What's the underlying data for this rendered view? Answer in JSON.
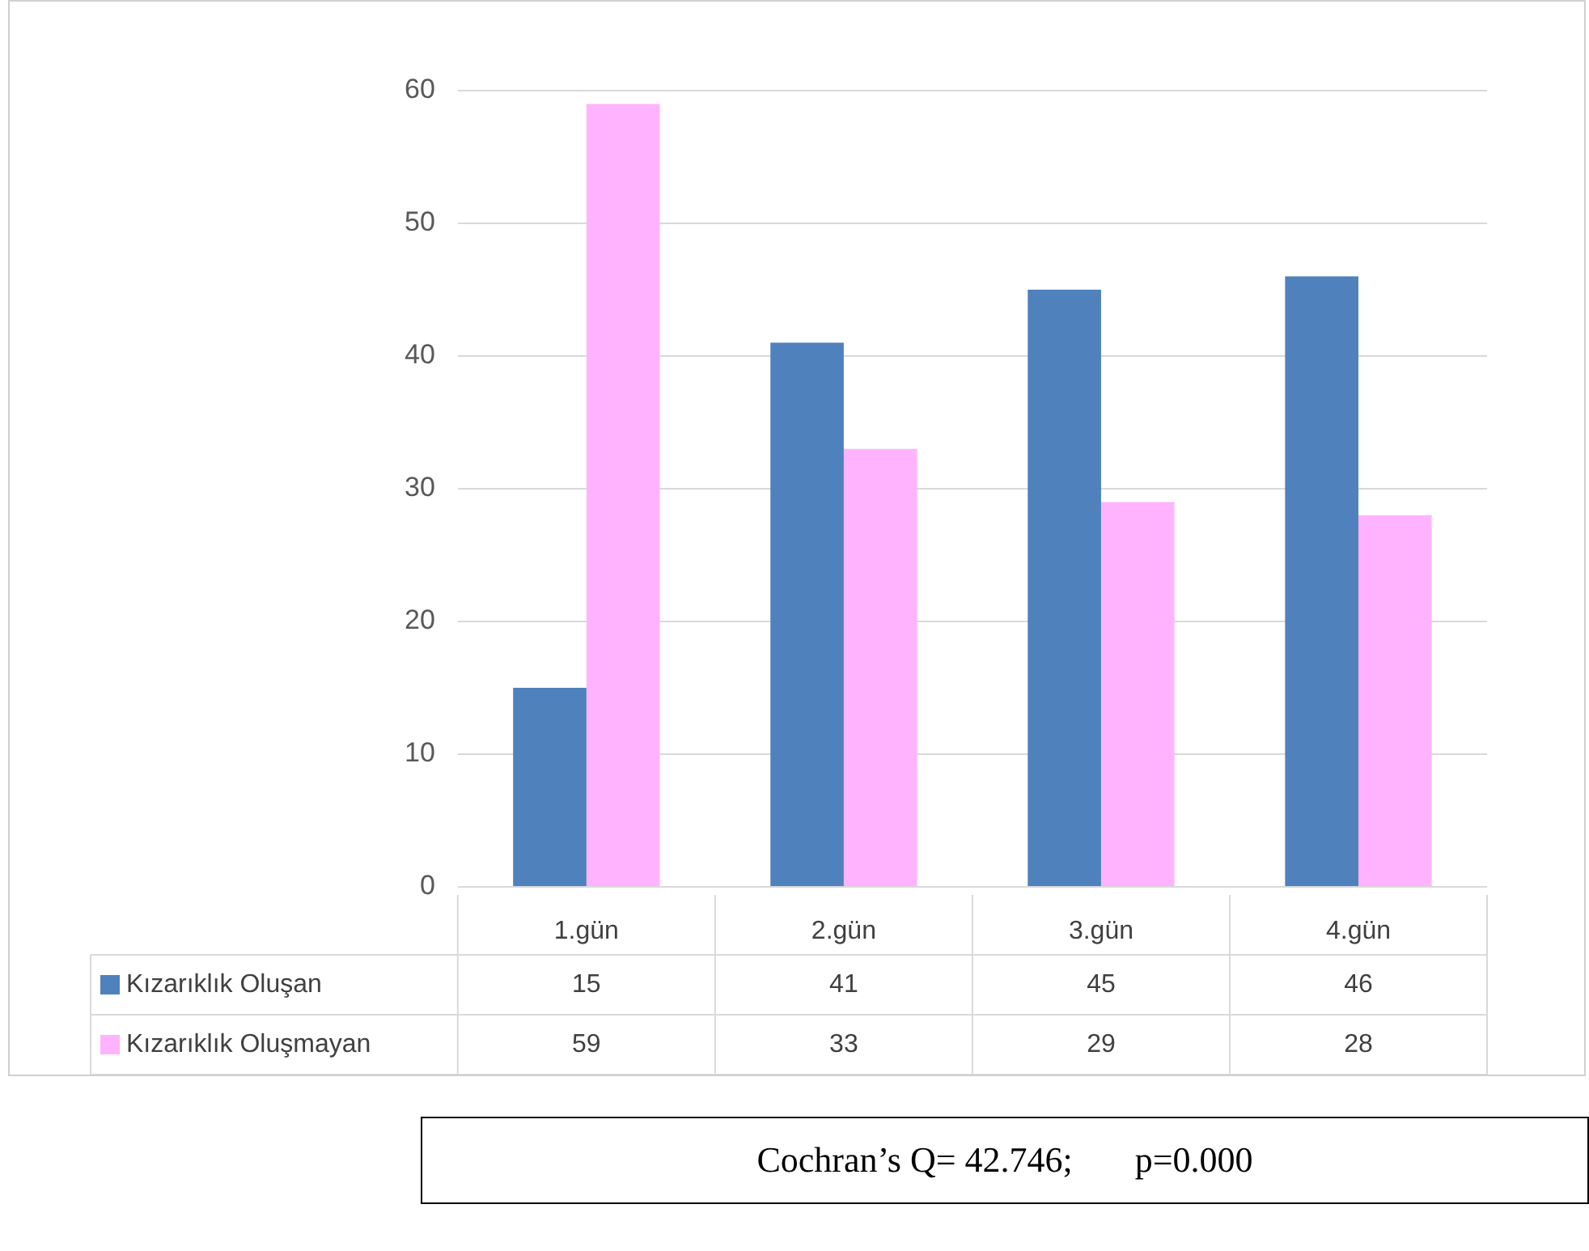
{
  "chart_data": {
    "type": "bar",
    "categories": [
      "1.gün",
      "2.gün",
      "3.gün",
      "4.gün"
    ],
    "series": [
      {
        "name": "Kızarıklık Oluşan",
        "color": "#4f81bd",
        "values": [
          15,
          41,
          45,
          46
        ]
      },
      {
        "name": "Kızarıklık Oluşmayan",
        "color": "#ffb3ff",
        "values": [
          59,
          33,
          29,
          28
        ]
      }
    ],
    "ylim": [
      0,
      60
    ],
    "yticks": [
      0,
      10,
      20,
      30,
      40,
      50,
      60
    ],
    "grid": "y",
    "legend": "bottom",
    "data_labels": true,
    "annotations": [
      "Cochran’s Q= 42.746;       p=0.000"
    ]
  }
}
